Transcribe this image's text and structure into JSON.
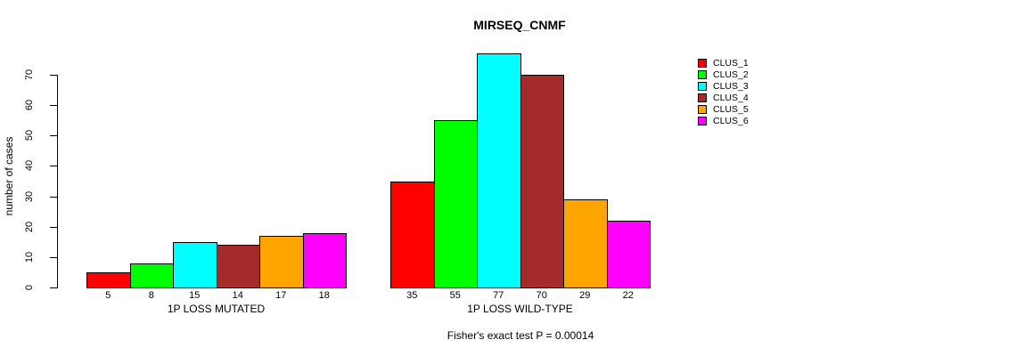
{
  "chart_data": {
    "type": "bar",
    "title": "MIRSEQ_CNMF",
    "ylabel": "number of cases",
    "footer_note": "Fisher's exact test P = 0.00014",
    "ylim": [
      0,
      70
    ],
    "yticks": [
      0,
      10,
      20,
      30,
      40,
      50,
      60,
      70
    ],
    "grid": false,
    "background": "#FFFFFF",
    "series_colors": [
      "#FF0000",
      "#00FF00",
      "#00FFFF",
      "#A52A2A",
      "#FFA500",
      "#FF00FF"
    ],
    "legend": {
      "position": "right",
      "entries": [
        {
          "label": "CLUS_1",
          "color": "#FF0000"
        },
        {
          "label": "CLUS_2",
          "color": "#00FF00"
        },
        {
          "label": "CLUS_3",
          "color": "#00FFFF"
        },
        {
          "label": "CLUS_4",
          "color": "#A52A2A"
        },
        {
          "label": "CLUS_5",
          "color": "#FFA500"
        },
        {
          "label": "CLUS_6",
          "color": "#FF00FF"
        }
      ]
    },
    "groups": [
      {
        "xlabel": "1P LOSS MUTATED",
        "bar_labels": [
          "5",
          "8",
          "15",
          "14",
          "17",
          "18"
        ],
        "values": [
          5,
          8,
          15,
          14,
          17,
          18
        ]
      },
      {
        "xlabel": "1P LOSS WILD-TYPE",
        "bar_labels": [
          "35",
          "55",
          "77",
          "70",
          "29",
          "22"
        ],
        "values": [
          35,
          55,
          77,
          70,
          29,
          22
        ]
      }
    ]
  }
}
